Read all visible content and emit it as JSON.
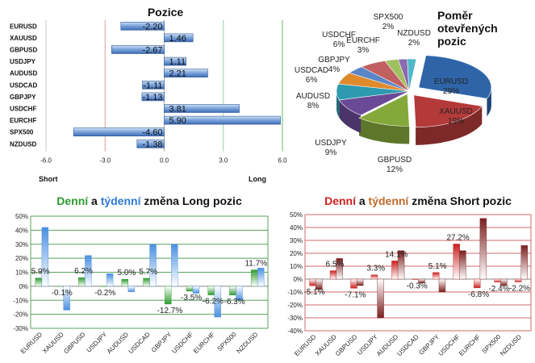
{
  "colors": {
    "long_daily": "#2e9a2e",
    "long_weekly": "#4a8fe0",
    "short_daily": "#cc1f1f",
    "short_weekly": "#7a1f1f",
    "position_bar": "#4f7fc4",
    "grid_red": "#d36a6a",
    "grid_green": "#5aa15a"
  },
  "chart_data": [
    {
      "id": "pozice",
      "type": "bar",
      "orientation": "horizontal",
      "title": "Pozice",
      "categories": [
        "EURUSD",
        "XAUUSD",
        "GBPUSD",
        "USDJPY",
        "AUDUSD",
        "USDCAD",
        "GBPJPY",
        "USDCHF",
        "EURCHF",
        "SPX500",
        "NZDUSD"
      ],
      "values": [
        -2.2,
        1.46,
        -2.67,
        1.11,
        2.21,
        -1.11,
        -1.13,
        3.81,
        5.9,
        -4.6,
        -1.38
      ],
      "value_labels": [
        "-2.20",
        "1.46",
        "-2.67",
        "1.11",
        "2.21",
        "-1.11",
        "-1.13",
        "3.81",
        "5.90",
        "-4.60",
        "-1.38"
      ],
      "xlim": [
        -6.0,
        6.0
      ],
      "xticks": [
        "-6.0",
        "-3.0",
        "0.0",
        "3.0",
        "6.0"
      ],
      "left_label": "Short",
      "right_label": "Long"
    },
    {
      "id": "pomer",
      "type": "pie",
      "title_lines": [
        "Poměr",
        "otevřených",
        "pozic"
      ],
      "slices": [
        {
          "name": "EURUSD",
          "value": 29,
          "label": "29%",
          "color": "#2f65a8"
        },
        {
          "name": "XAUUSD",
          "value": 19,
          "label": "19%",
          "color": "#b43a3a"
        },
        {
          "name": "GBPUSD",
          "value": 12,
          "label": "12%",
          "color": "#85a83a"
        },
        {
          "name": "USDJPY",
          "value": 9,
          "label": "9%",
          "color": "#6a4a96"
        },
        {
          "name": "AUDUSD",
          "value": 8,
          "label": "8%",
          "color": "#2d9ab0"
        },
        {
          "name": "USDCAD",
          "value": 6,
          "label": "6%",
          "color": "#e08a2e"
        },
        {
          "name": "GBPJPY",
          "value": 4,
          "label": "4%",
          "color": "#5a86c8"
        },
        {
          "name": "USDCHF",
          "value": 6,
          "label": "6%",
          "color": "#c06060"
        },
        {
          "name": "EURCHF",
          "value": 3,
          "label": "3%",
          "color": "#9fc060"
        },
        {
          "name": "SPX500",
          "value": 2,
          "label": "2%",
          "color": "#8a6ab0"
        },
        {
          "name": "NZDUSD",
          "value": 2,
          "label": "2%",
          "color": "#50b8c8"
        }
      ]
    },
    {
      "id": "long",
      "type": "bar",
      "title_parts": [
        {
          "text": "Denní",
          "color": "#2e9a2e"
        },
        {
          "text": " a ",
          "color": "#111"
        },
        {
          "text": "týdenní",
          "color": "#2d7ad8"
        },
        {
          "text": " změna Long pozic",
          "color": "#111"
        }
      ],
      "categories": [
        "EURUSD",
        "XAUUSD",
        "GBPUSD",
        "USDJPY",
        "AUDUSD",
        "USDCAD",
        "GBPJPY",
        "USDCHF",
        "EURCHF",
        "SPX500",
        "NZDUSD"
      ],
      "series": [
        {
          "name": "Denní",
          "values": [
            5.9,
            -0.1,
            6.2,
            -0.2,
            5.0,
            5.7,
            -12.7,
            -3.5,
            -6.2,
            -6.3,
            11.7
          ]
        },
        {
          "name": "Týdenní",
          "values": [
            42,
            -17,
            22,
            9,
            -4,
            30,
            30,
            -5,
            -22,
            -10,
            13
          ]
        }
      ],
      "value_labels": [
        "5.9%",
        "-0.1%",
        "6.2%",
        "-0.2%",
        "5.0%",
        "5.7%",
        "-12.7%",
        "-3.5%",
        "-6.2%",
        "-6.3%",
        "11.7%"
      ],
      "ylim": [
        -30,
        50
      ],
      "yticks": [
        "50%",
        "40%",
        "30%",
        "20%",
        "10%",
        "0%",
        "-10%",
        "-20%",
        "-30%"
      ]
    },
    {
      "id": "short",
      "type": "bar",
      "title_parts": [
        {
          "text": "Denní",
          "color": "#cc1f1f"
        },
        {
          "text": " a ",
          "color": "#111"
        },
        {
          "text": "týdenní",
          "color": "#c06a2a"
        },
        {
          "text": " změna Short pozic",
          "color": "#111"
        }
      ],
      "categories": [
        "EURUSD",
        "XAUUSD",
        "GBPUSD",
        "USDJPY",
        "AUDUSD",
        "USDCAD",
        "GBPJPY",
        "USDCHF",
        "EURCHF",
        "SPX500",
        "NZDUSD"
      ],
      "series": [
        {
          "name": "Denní",
          "values": [
            -5.1,
            6.5,
            -7.1,
            3.3,
            14.1,
            -0.3,
            5.1,
            27.2,
            -6.8,
            -2.4,
            -2.2
          ]
        },
        {
          "name": "Týdenní",
          "values": [
            -8,
            16,
            -5,
            -30,
            22,
            -3,
            -10,
            22,
            47,
            -5,
            26
          ]
        }
      ],
      "value_labels": [
        "-5.1%",
        "6.5%",
        "-7.1%",
        "3.3%",
        "14.1%",
        "-0.3%",
        "5.1%",
        "27.2%",
        "-6.8%",
        "-2.4%",
        "-2.2%"
      ],
      "ylim": [
        -40,
        50
      ],
      "yticks": [
        "50%",
        "40%",
        "30%",
        "20%",
        "10%",
        "0%",
        "-10%",
        "-20%",
        "-30%",
        "-40%"
      ]
    }
  ]
}
